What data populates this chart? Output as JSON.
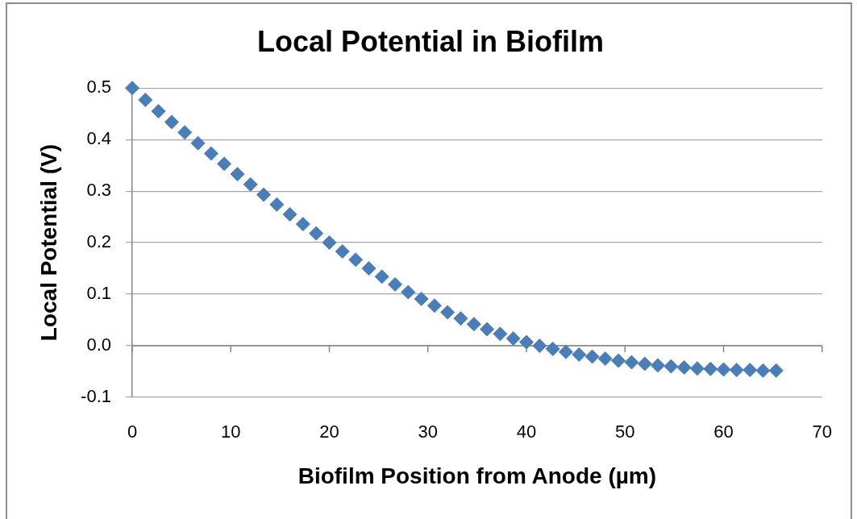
{
  "chart_data": {
    "type": "scatter",
    "title": "Local Potential in Biofilm",
    "xlabel": "Biofilm Position from Anode (µm)",
    "ylabel": "Local Potential (V)",
    "x": [
      0,
      1.33,
      2.67,
      4,
      5.33,
      6.67,
      8,
      9.33,
      10.67,
      12,
      13.33,
      14.67,
      16,
      17.33,
      18.67,
      20,
      21.33,
      22.67,
      24,
      25.33,
      26.67,
      28,
      29.33,
      30.67,
      32,
      33.33,
      34.67,
      36,
      37.33,
      38.67,
      40,
      41.33,
      42.67,
      44,
      45.33,
      46.67,
      48,
      49.33,
      50.67,
      52,
      53.33,
      54.67,
      56,
      57.33,
      58.67,
      60,
      61.33,
      62.67,
      64,
      65.33
    ],
    "series": [
      {
        "color": "#4a7ebb",
        "values": [
          0.5,
          0.477,
          0.455,
          0.434,
          0.414,
          0.393,
          0.373,
          0.353,
          0.333,
          0.313,
          0.293,
          0.274,
          0.255,
          0.236,
          0.218,
          0.2,
          0.183,
          0.167,
          0.15,
          0.134,
          0.119,
          0.104,
          0.091,
          0.078,
          0.065,
          0.053,
          0.042,
          0.032,
          0.023,
          0.014,
          0.007,
          0.0,
          -0.006,
          -0.012,
          -0.017,
          -0.021,
          -0.025,
          -0.029,
          -0.032,
          -0.035,
          -0.038,
          -0.04,
          -0.042,
          -0.044,
          -0.045,
          -0.046,
          -0.047,
          -0.047,
          -0.048,
          -0.048
        ]
      }
    ],
    "xlim": [
      0,
      70
    ],
    "xticks": [
      0,
      10,
      20,
      30,
      40,
      50,
      60,
      70
    ],
    "ylim": [
      -0.1,
      0.5
    ],
    "yticks": [
      -0.1,
      {
        "value": 0,
        "label": "0.0"
      },
      0.1,
      0.2,
      0.3,
      0.4,
      0.5
    ],
    "grid": "y",
    "marker": "diamond"
  }
}
